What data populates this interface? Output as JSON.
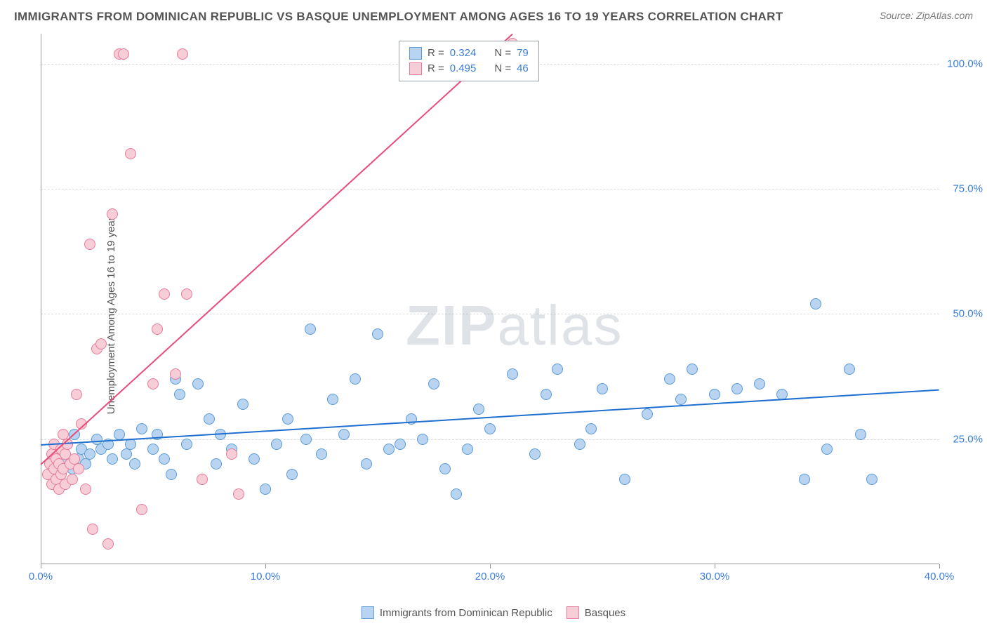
{
  "title": "IMMIGRANTS FROM DOMINICAN REPUBLIC VS BASQUE UNEMPLOYMENT AMONG AGES 16 TO 19 YEARS CORRELATION CHART",
  "source": "Source: ZipAtlas.com",
  "ylabel": "Unemployment Among Ages 16 to 19 years",
  "watermark_a": "ZIP",
  "watermark_b": "atlas",
  "chart": {
    "type": "scatter",
    "xlim": [
      0,
      40
    ],
    "ylim": [
      0,
      106
    ],
    "xticks": [
      0,
      10,
      20,
      30,
      40
    ],
    "xtick_labels": [
      "0.0%",
      "10.0%",
      "20.0%",
      "30.0%",
      "40.0%"
    ],
    "yticks": [
      25,
      50,
      75,
      100
    ],
    "ytick_labels": [
      "25.0%",
      "50.0%",
      "75.0%",
      "100.0%"
    ],
    "grid_color": "#dcdcdc",
    "background_color": "#ffffff",
    "axis_color": "#999999",
    "point_radius": 8,
    "point_stroke_width": 1,
    "series": [
      {
        "name": "Immigrants from Dominican Republic",
        "fill": "#b9d4f0",
        "stroke": "#5a9bd5",
        "r": 0.324,
        "n": 79,
        "trend": {
          "x1": 0,
          "y1": 24,
          "x2": 40,
          "y2": 35,
          "color": "#1f6fd0",
          "width": 2
        },
        "points": [
          [
            0.5,
            20
          ],
          [
            0.6,
            22
          ],
          [
            0.8,
            18
          ],
          [
            1.0,
            23
          ],
          [
            1.1,
            20
          ],
          [
            1.2,
            24
          ],
          [
            1.4,
            19
          ],
          [
            1.5,
            26
          ],
          [
            1.7,
            21
          ],
          [
            1.8,
            23
          ],
          [
            2.0,
            20
          ],
          [
            2.2,
            22
          ],
          [
            2.5,
            25
          ],
          [
            2.7,
            23
          ],
          [
            3.0,
            24
          ],
          [
            3.2,
            21
          ],
          [
            3.5,
            26
          ],
          [
            3.8,
            22
          ],
          [
            4.0,
            24
          ],
          [
            4.2,
            20
          ],
          [
            4.5,
            27
          ],
          [
            5.0,
            23
          ],
          [
            5.2,
            26
          ],
          [
            5.5,
            21
          ],
          [
            5.8,
            18
          ],
          [
            6.0,
            37
          ],
          [
            6.2,
            34
          ],
          [
            6.5,
            24
          ],
          [
            7.0,
            36
          ],
          [
            7.5,
            29
          ],
          [
            7.8,
            20
          ],
          [
            8.0,
            26
          ],
          [
            8.5,
            23
          ],
          [
            9.0,
            32
          ],
          [
            9.5,
            21
          ],
          [
            10.0,
            15
          ],
          [
            10.5,
            24
          ],
          [
            11.0,
            29
          ],
          [
            11.2,
            18
          ],
          [
            11.8,
            25
          ],
          [
            12.0,
            47
          ],
          [
            12.5,
            22
          ],
          [
            13.0,
            33
          ],
          [
            13.5,
            26
          ],
          [
            14.0,
            37
          ],
          [
            14.5,
            20
          ],
          [
            15.0,
            46
          ],
          [
            15.5,
            23
          ],
          [
            16.0,
            24
          ],
          [
            16.5,
            29
          ],
          [
            17.0,
            25
          ],
          [
            17.5,
            36
          ],
          [
            18.0,
            19
          ],
          [
            18.5,
            14
          ],
          [
            19.0,
            23
          ],
          [
            19.5,
            31
          ],
          [
            20.0,
            27
          ],
          [
            21.0,
            38
          ],
          [
            22.0,
            22
          ],
          [
            22.5,
            34
          ],
          [
            23.0,
            39
          ],
          [
            24.0,
            24
          ],
          [
            24.5,
            27
          ],
          [
            25.0,
            35
          ],
          [
            26.0,
            17
          ],
          [
            27.0,
            30
          ],
          [
            28.0,
            37
          ],
          [
            28.5,
            33
          ],
          [
            29.0,
            39
          ],
          [
            30.0,
            34
          ],
          [
            31.0,
            35
          ],
          [
            32.0,
            36
          ],
          [
            33.0,
            34
          ],
          [
            34.0,
            17
          ],
          [
            34.5,
            52
          ],
          [
            35.0,
            23
          ],
          [
            36.0,
            39
          ],
          [
            36.5,
            26
          ],
          [
            37.0,
            17
          ]
        ]
      },
      {
        "name": "Basques",
        "fill": "#f7cdd7",
        "stroke": "#e87b9a",
        "r": 0.495,
        "n": 46,
        "trend": {
          "x1": 0,
          "y1": 20,
          "x2": 21,
          "y2": 106,
          "color": "#e94b7a",
          "width": 2
        },
        "points": [
          [
            0.3,
            18
          ],
          [
            0.4,
            20
          ],
          [
            0.5,
            16
          ],
          [
            0.5,
            22
          ],
          [
            0.6,
            19
          ],
          [
            0.6,
            24
          ],
          [
            0.7,
            17
          ],
          [
            0.7,
            21
          ],
          [
            0.8,
            20
          ],
          [
            0.8,
            15
          ],
          [
            0.9,
            23
          ],
          [
            0.9,
            18
          ],
          [
            1.0,
            26
          ],
          [
            1.0,
            19
          ],
          [
            1.1,
            22
          ],
          [
            1.1,
            16
          ],
          [
            1.2,
            24
          ],
          [
            1.3,
            20
          ],
          [
            1.4,
            17
          ],
          [
            1.5,
            21
          ],
          [
            1.6,
            34
          ],
          [
            1.7,
            19
          ],
          [
            1.8,
            28
          ],
          [
            2.0,
            15
          ],
          [
            2.2,
            64
          ],
          [
            2.3,
            7
          ],
          [
            2.5,
            43
          ],
          [
            2.7,
            44
          ],
          [
            3.0,
            4
          ],
          [
            3.2,
            70
          ],
          [
            3.5,
            102
          ],
          [
            3.7,
            102
          ],
          [
            4.0,
            82
          ],
          [
            4.5,
            11
          ],
          [
            5.0,
            36
          ],
          [
            5.2,
            47
          ],
          [
            5.5,
            54
          ],
          [
            6.0,
            38
          ],
          [
            6.3,
            102
          ],
          [
            6.5,
            54
          ],
          [
            7.2,
            17
          ],
          [
            8.5,
            22
          ],
          [
            8.8,
            14
          ],
          [
            19.0,
            102
          ],
          [
            20.5,
            102
          ],
          [
            21.0,
            104
          ]
        ]
      }
    ]
  },
  "legend_top": {
    "r_label": "R =",
    "n_label": "N ="
  },
  "legend_bottom": {
    "series_a": "Immigrants from Dominican Republic",
    "series_b": "Basques"
  }
}
